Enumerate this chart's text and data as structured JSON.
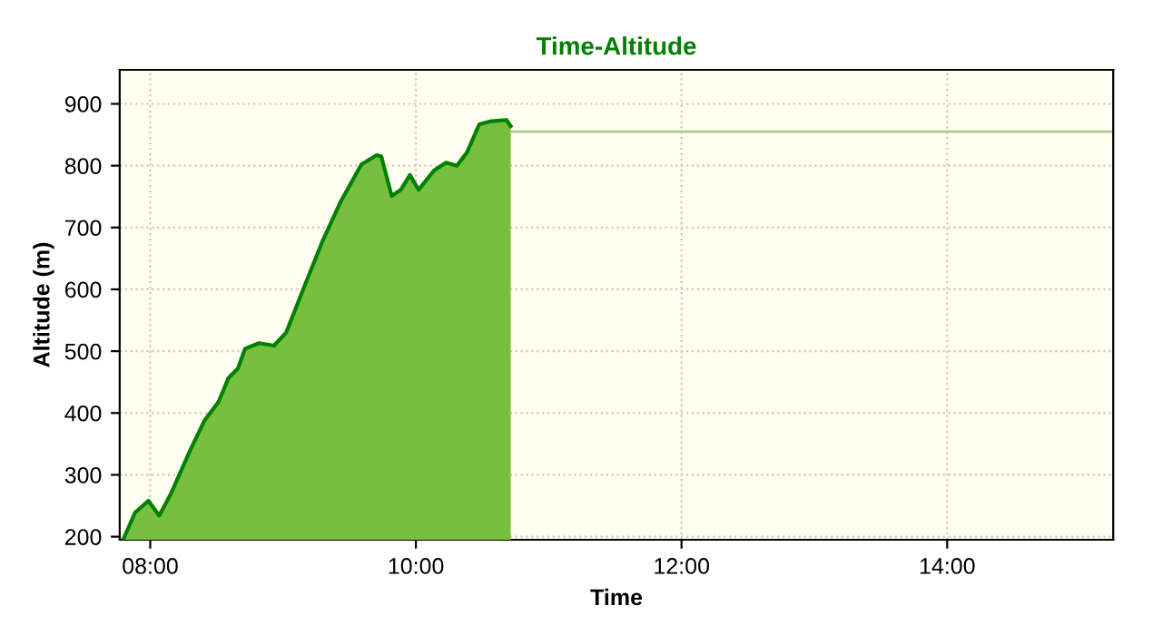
{
  "chart_data": {
    "type": "area",
    "title": "Time-Altitude",
    "xlabel": "Time",
    "ylabel": "Altitude (m)",
    "x": [
      7.8,
      7.886,
      7.986,
      8.068,
      8.159,
      8.295,
      8.409,
      8.514,
      8.59,
      8.66,
      8.714,
      8.818,
      8.932,
      9.023,
      9.159,
      9.295,
      9.432,
      9.59,
      9.705,
      9.74,
      9.818,
      9.886,
      9.955,
      10.02,
      10.136,
      10.227,
      10.309,
      10.386,
      10.477,
      10.568,
      10.682,
      10.714
    ],
    "series": [
      {
        "color": "#008000",
        "values": [
          197,
          239,
          258,
          234,
          271,
          337,
          388,
          418,
          457,
          472,
          504,
          513,
          509,
          530,
          604,
          677,
          741,
          802,
          817,
          815,
          751,
          761,
          785,
          761,
          792,
          805,
          800,
          822,
          867,
          872,
          874,
          864
        ]
      }
    ],
    "xlim": [
      7.77,
      15.25
    ],
    "ylim": [
      195,
      955
    ],
    "xticks": [
      {
        "value": 8,
        "label": "08:00"
      },
      {
        "value": 10,
        "label": "10:00"
      },
      {
        "value": 12,
        "label": "12:00"
      },
      {
        "value": 14,
        "label": "14:00"
      }
    ],
    "yticks": [
      200,
      300,
      400,
      500,
      600,
      700,
      800,
      900
    ],
    "ref_lines": [
      {
        "axis": "y",
        "value": 855,
        "color": "#a8c890"
      }
    ],
    "grid": true,
    "legend": false
  }
}
